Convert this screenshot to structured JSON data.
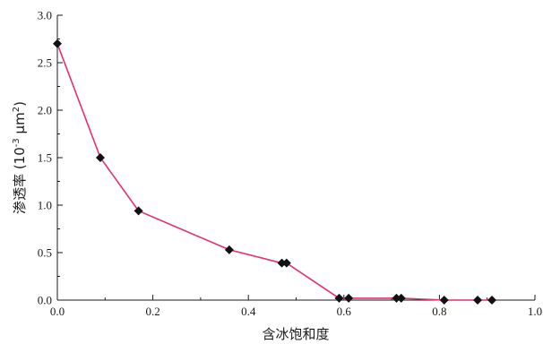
{
  "chart_data": {
    "type": "line",
    "xlabel": "含冰饱和度",
    "ylabel": {
      "text": "渗透率 (10",
      "sup1": "-3",
      "mid": " μm",
      "sup2": "2",
      "end": ")"
    },
    "xlim": [
      0.0,
      1.0
    ],
    "ylim": [
      0.0,
      3.0
    ],
    "x_ticks": [
      "0.0",
      "0.2",
      "0.4",
      "0.6",
      "0.8",
      "1.0"
    ],
    "y_ticks": [
      "0.0",
      "0.5",
      "1.0",
      "1.5",
      "2.0",
      "2.5",
      "3.0"
    ],
    "x_tick_values": [
      0.0,
      0.2,
      0.4,
      0.6,
      0.8,
      1.0
    ],
    "y_tick_values": [
      0.0,
      0.5,
      1.0,
      1.5,
      2.0,
      2.5,
      3.0
    ],
    "minor_x_step": 0.1,
    "minor_y_step": 0.25,
    "grid": false,
    "line_color": "#e0336b",
    "marker_color": "#111111",
    "marker": "diamond",
    "series": [
      {
        "x": [
          0.0,
          0.09,
          0.17,
          0.36,
          0.47,
          0.48,
          0.59,
          0.61,
          0.71,
          0.72,
          0.81,
          0.88,
          0.91
        ],
        "y": [
          2.7,
          1.5,
          0.94,
          0.53,
          0.39,
          0.39,
          0.02,
          0.02,
          0.02,
          0.02,
          0.0,
          0.0,
          0.0
        ]
      }
    ]
  }
}
